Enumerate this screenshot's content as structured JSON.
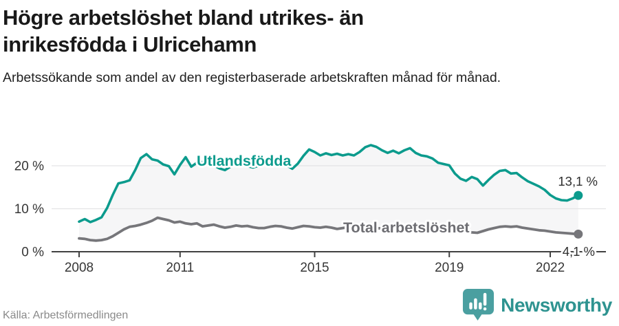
{
  "header": {
    "title_line1": "Högre arbetslöshet bland utrikes- än",
    "title_line2": "inrikesfödda i Ulricehamn",
    "subtitle": "Arbetssökande som andel av den registerbaserade arbetskraften månad för månad."
  },
  "footer": {
    "source": "Källa: Arbetsförmedlingen",
    "brand": "Newsworthy"
  },
  "colors": {
    "teal_line": "#0c9b8d",
    "gray_line": "#76767a",
    "gray_label": "#6d6d72",
    "band_fill": "#f6f6f7",
    "gridline": "#e3e3e5",
    "axis": "#404040",
    "tick_text": "#363636",
    "value_text": "#2e2e2e",
    "logo_teal": "#4a9fa0",
    "logo_text": "#2e9390"
  },
  "chart_data": {
    "type": "line",
    "title": "Högre arbetslöshet bland utrikes- än inrikesfödda i Ulricehamn",
    "subtitle": "Arbetssökande som andel av den registerbaserade arbetskraften månad för månad.",
    "unit": "%",
    "x_start": 2008.0,
    "points_per_year": 6,
    "x_tick_years": [
      2008,
      2011,
      2015,
      2019,
      2022
    ],
    "x_tick_labels": [
      "2008",
      "2011",
      "2015",
      "2019",
      "2022"
    ],
    "y_tick_values": [
      0,
      10,
      20
    ],
    "y_tick_labels": [
      "0 %",
      "10 %",
      "20 %"
    ],
    "ylim": [
      0,
      27
    ],
    "grid": "horizontal",
    "legend_position": "inline-labels",
    "series": [
      {
        "name": "Utlandsfödda",
        "end_label": "13,1 %",
        "end_value": 13.1,
        "values": [
          7.0,
          7.6,
          6.9,
          7.4,
          8.0,
          10.2,
          13.2,
          15.9,
          16.2,
          16.6,
          19.0,
          21.8,
          22.7,
          21.5,
          21.2,
          20.3,
          19.9,
          18.0,
          20.2,
          22.0,
          19.8,
          20.7,
          20.9,
          20.3,
          20.1,
          19.4,
          19.0,
          19.8,
          20.2,
          20.4,
          19.9,
          19.6,
          20.0,
          20.3,
          20.6,
          20.4,
          20.6,
          20.1,
          19.3,
          20.5,
          22.3,
          23.8,
          23.2,
          22.4,
          22.9,
          22.5,
          22.8,
          22.4,
          22.7,
          22.4,
          23.2,
          24.3,
          24.8,
          24.4,
          23.6,
          23.0,
          23.5,
          22.9,
          23.6,
          24.1,
          23.0,
          22.4,
          22.2,
          21.7,
          20.7,
          20.4,
          20.1,
          18.2,
          17.0,
          16.5,
          17.4,
          16.9,
          15.4,
          16.7,
          17.9,
          18.8,
          19.0,
          18.2,
          18.3,
          17.3,
          16.4,
          15.8,
          15.2,
          14.4,
          13.2,
          12.4,
          12.0,
          11.9,
          12.4,
          13.1
        ]
      },
      {
        "name": "Total arbetslöshet",
        "end_label": "4,1 %",
        "end_value": 4.1,
        "values": [
          3.1,
          3.0,
          2.7,
          2.6,
          2.7,
          3.0,
          3.6,
          4.4,
          5.2,
          5.8,
          6.0,
          6.3,
          6.7,
          7.2,
          7.9,
          7.6,
          7.3,
          6.8,
          7.0,
          6.6,
          6.4,
          6.6,
          5.9,
          6.1,
          6.3,
          5.9,
          5.6,
          5.8,
          6.1,
          5.9,
          6.0,
          5.7,
          5.5,
          5.5,
          5.8,
          6.0,
          5.9,
          5.6,
          5.4,
          5.7,
          6.0,
          5.9,
          5.7,
          5.6,
          5.8,
          5.6,
          5.3,
          5.5,
          5.7,
          5.5,
          5.4,
          5.5,
          5.6,
          5.5,
          5.4,
          5.3,
          5.4,
          5.2,
          5.4,
          5.5,
          5.3,
          5.1,
          5.2,
          5.0,
          4.9,
          5.0,
          4.8,
          4.7,
          4.6,
          4.7,
          4.5,
          4.4,
          4.8,
          5.2,
          5.5,
          5.8,
          5.9,
          5.8,
          5.9,
          5.6,
          5.4,
          5.2,
          5.0,
          4.9,
          4.7,
          4.5,
          4.4,
          4.3,
          4.2,
          4.1
        ]
      }
    ]
  }
}
